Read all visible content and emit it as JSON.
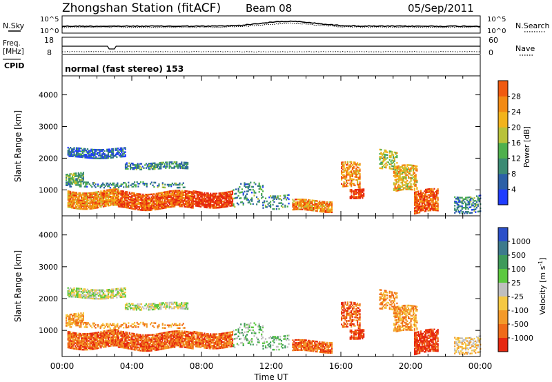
{
  "header": {
    "station": "Zhongshan Station (fitACF)",
    "beam": "Beam 08",
    "date": "05/Sep/2011"
  },
  "top_panels": {
    "nsky_label": "N.Sky",
    "nsearch_label": "N.Search",
    "log_top": "10^5",
    "log_bottom": "10^0",
    "log_top_r": "10^5",
    "log_bottom_r": "10^0",
    "freq_label": "Freq.",
    "freq_unit": "[MHz]",
    "freq_top": "18",
    "freq_bottom": "8",
    "nave_label": "Nave",
    "nave_top": "60",
    "nave_bottom": "0",
    "cpid_label": "CPID",
    "cpid_value": "normal (fast stereo) 153"
  },
  "chart_data": [
    {
      "type": "heatmap",
      "panel": "power",
      "xlabel": "",
      "ylabel": "Slant Range [km]",
      "x_ticks": [
        "00:00",
        "04:00",
        "08:00",
        "12:00",
        "16:00",
        "20:00",
        "00:00"
      ],
      "x_range_hours": [
        0,
        24
      ],
      "y_ticks": [
        1000,
        2000,
        3000,
        4000
      ],
      "ylim": [
        180,
        4600
      ],
      "colorbar_label": "Power [dB]",
      "colorbar_ticks": [
        4,
        8,
        12,
        16,
        20,
        24,
        28
      ],
      "colorbar_range": [
        0,
        30
      ],
      "colors": [
        "#1f3cff",
        "#2b5fa6",
        "#3b8a73",
        "#4fb04d",
        "#b8c23a",
        "#f2b31c",
        "#f28a14",
        "#f05a10",
        "#e62810"
      ]
    },
    {
      "type": "heatmap",
      "panel": "velocity",
      "xlabel": "Time UT",
      "ylabel": "Slant Range [km]",
      "x_ticks": [
        "00:00",
        "04:00",
        "08:00",
        "12:00",
        "16:00",
        "20:00",
        "00:00"
      ],
      "x_range_hours": [
        0,
        24
      ],
      "y_ticks": [
        1000,
        2000,
        3000,
        4000
      ],
      "ylim": [
        180,
        4600
      ],
      "colorbar_label": "Velocity [m s^-1]",
      "colorbar_ticks": [
        "1000",
        "500",
        "100",
        "25",
        "-25",
        "-100",
        "-500",
        "-1000"
      ],
      "colors": [
        "#2b4fc8",
        "#3d7a8c",
        "#3e9a5a",
        "#5cc840",
        "#bfbfbf",
        "#f5c842",
        "#f39a2a",
        "#ef6a18",
        "#e62810"
      ]
    }
  ]
}
